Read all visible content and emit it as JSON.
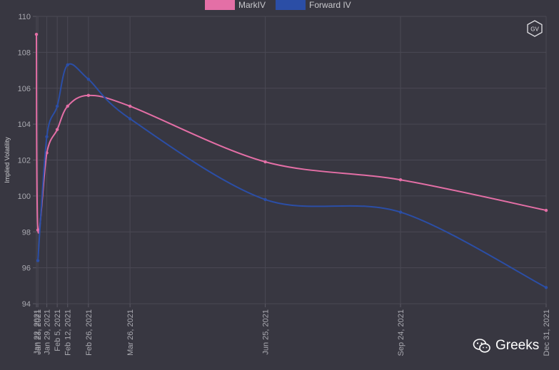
{
  "chart_data": {
    "type": "line",
    "title": "",
    "xlabel": "",
    "ylabel": "Implied Volatility",
    "ylim": [
      94,
      110
    ],
    "yticks": [
      94,
      96,
      98,
      100,
      102,
      104,
      106,
      108,
      110
    ],
    "x_range": [
      "2021-01-22",
      "2021-12-31"
    ],
    "x_ticks": [
      {
        "date": "2021-01-22",
        "label": "Jan 22, 2021"
      },
      {
        "date": "2021-01-23",
        "label": "Jan 23, 2021"
      },
      {
        "date": "2021-01-29",
        "label": "Jan 29, 2021"
      },
      {
        "date": "2021-02-05",
        "label": "Feb 5, 2021"
      },
      {
        "date": "2021-02-12",
        "label": "Feb 12, 2021"
      },
      {
        "date": "2021-02-26",
        "label": "Feb 26, 2021"
      },
      {
        "date": "2021-03-26",
        "label": "Mar 26, 2021"
      },
      {
        "date": "2021-06-25",
        "label": "Jun 25, 2021"
      },
      {
        "date": "2021-09-24",
        "label": "Sep 24, 2021"
      },
      {
        "date": "2021-12-31",
        "label": "Dec 31, 2021"
      }
    ],
    "grid": true,
    "legend_position": "top",
    "series": [
      {
        "name": "MarkIV",
        "color": "#e46fa6",
        "points": [
          {
            "x": "2021-01-22",
            "y": 109.0
          },
          {
            "x": "2021-01-23",
            "y": 98.1
          },
          {
            "x": "2021-01-29",
            "y": 102.4
          },
          {
            "x": "2021-02-05",
            "y": 103.7
          },
          {
            "x": "2021-02-12",
            "y": 105.0
          },
          {
            "x": "2021-02-26",
            "y": 105.6
          },
          {
            "x": "2021-03-26",
            "y": 105.0
          },
          {
            "x": "2021-06-25",
            "y": 101.9
          },
          {
            "x": "2021-09-24",
            "y": 100.9
          },
          {
            "x": "2021-12-31",
            "y": 99.2
          }
        ]
      },
      {
        "name": "Forward IV",
        "color": "#2b4ea6",
        "points": [
          {
            "x": "2021-01-23",
            "y": 96.4
          },
          {
            "x": "2021-01-29",
            "y": 103.3
          },
          {
            "x": "2021-02-05",
            "y": 105.0
          },
          {
            "x": "2021-02-12",
            "y": 107.3
          },
          {
            "x": "2021-02-26",
            "y": 106.5
          },
          {
            "x": "2021-03-26",
            "y": 104.3
          },
          {
            "x": "2021-06-25",
            "y": 99.8
          },
          {
            "x": "2021-09-24",
            "y": 99.1
          },
          {
            "x": "2021-12-31",
            "y": 94.9
          }
        ]
      }
    ]
  },
  "logo": {
    "text": "GV"
  },
  "watermark": {
    "text": "Greeks",
    "icon": "wechat-icon"
  }
}
